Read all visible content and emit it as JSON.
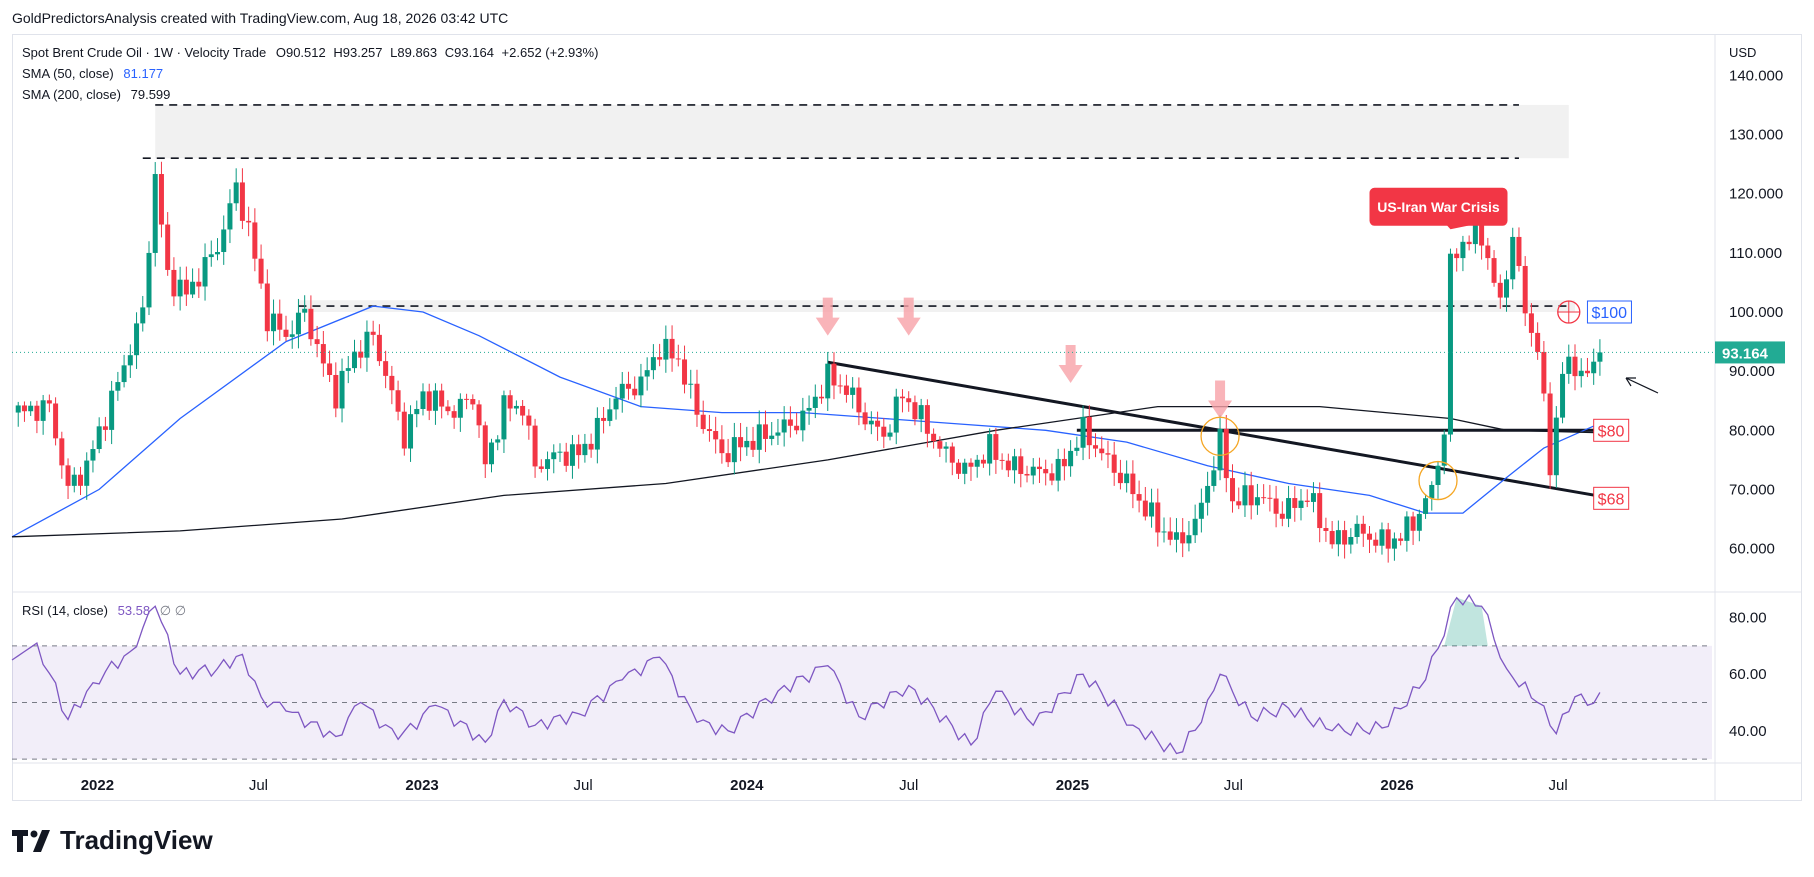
{
  "caption": "GoldPredictorsAnalysis created with TradingView.com, Aug 18, 2026 03:42 UTC",
  "legend": {
    "symbol": "Spot Brent Crude Oil · 1W · Velocity Trade",
    "ohlc": {
      "o_label": "O",
      "o": "90.512",
      "h_label": "H",
      "h": "93.257",
      "l_label": "L",
      "l": "89.863",
      "c_label": "C",
      "c": "93.164",
      "change": "+2.652 (+2.93%)"
    },
    "sma50_label": "SMA (50, close)",
    "sma50_value": "81.177",
    "sma200_label": "SMA (200, close)",
    "sma200_value": "79.599",
    "rsi_label": "RSI (14, close)",
    "rsi_value": "53.58",
    "rsi_extra": "∅  ∅"
  },
  "currency": "USD",
  "brand": "TradingView",
  "colors": {
    "up": "#089981",
    "down": "#f23645",
    "sma50": "#2962ff",
    "sma200": "#131722",
    "rsi": "#7e57c2",
    "price_tag": "#22ab94",
    "crisis": "#f23645",
    "arrow": "#f7a1a8"
  },
  "chart_data": [
    {
      "type": "candlestick",
      "title": "Spot Brent Crude Oil",
      "interval": "1W",
      "x_tick_labels": [
        "2022",
        "Jul",
        "2023",
        "Jul",
        "2024",
        "Jul",
        "2025",
        "Jul",
        "2026",
        "Jul"
      ],
      "x_ticks": [
        "2022-01-01",
        "2022-07-01",
        "2023-01-01",
        "2023-07-01",
        "2024-01-01",
        "2024-07-01",
        "2025-01-01",
        "2025-07-01",
        "2026-01-01",
        "2026-07-01"
      ],
      "xlim": [
        "2021-09-27",
        "2026-12-21"
      ],
      "ylim": [
        53,
        147
      ],
      "y_ticks": [
        60,
        70,
        80,
        90,
        100,
        110,
        120,
        130,
        140
      ],
      "y_tick_labels": [
        "60.000",
        "70.000",
        "80.000",
        "90.000",
        "100.000",
        "110.000",
        "120.000",
        "130.000",
        "140.000"
      ],
      "current_price": 93.164,
      "current_price_label": "93.164",
      "close_path": [
        [
          "2021-10-04",
          83
        ],
        [
          "2021-11-08",
          84
        ],
        [
          "2021-11-29",
          70
        ],
        [
          "2021-12-20",
          74
        ],
        [
          "2022-01-24",
          88
        ],
        [
          "2022-02-21",
          100
        ],
        [
          "2022-03-07",
          123
        ],
        [
          "2022-03-21",
          106
        ],
        [
          "2022-04-11",
          103
        ],
        [
          "2022-05-16",
          111
        ],
        [
          "2022-06-06",
          121
        ],
        [
          "2022-06-20",
          114
        ],
        [
          "2022-07-11",
          99
        ],
        [
          "2022-08-01",
          96
        ],
        [
          "2022-08-22",
          100
        ],
        [
          "2022-09-12",
          91
        ],
        [
          "2022-09-26",
          86
        ],
        [
          "2022-10-17",
          93
        ],
        [
          "2022-11-07",
          96
        ],
        [
          "2022-11-28",
          86
        ],
        [
          "2022-12-12",
          79
        ],
        [
          "2023-01-02",
          86
        ],
        [
          "2023-02-06",
          83
        ],
        [
          "2023-02-27",
          86
        ],
        [
          "2023-03-13",
          74
        ],
        [
          "2023-04-03",
          84
        ],
        [
          "2023-04-24",
          84
        ],
        [
          "2023-05-08",
          74
        ],
        [
          "2023-06-05",
          76
        ],
        [
          "2023-06-26",
          76
        ],
        [
          "2023-07-17",
          80
        ],
        [
          "2023-08-07",
          86
        ],
        [
          "2023-09-04",
          88
        ],
        [
          "2023-09-25",
          94
        ],
        [
          "2023-10-16",
          92
        ],
        [
          "2023-11-06",
          83
        ],
        [
          "2023-12-04",
          76
        ],
        [
          "2024-01-01",
          78
        ],
        [
          "2024-02-05",
          80
        ],
        [
          "2024-03-04",
          82
        ],
        [
          "2024-04-01",
          89
        ],
        [
          "2024-04-22",
          87
        ],
        [
          "2024-05-13",
          82
        ],
        [
          "2024-06-03",
          79
        ],
        [
          "2024-06-24",
          86
        ],
        [
          "2024-07-15",
          82
        ],
        [
          "2024-08-05",
          77
        ],
        [
          "2024-09-02",
          73
        ],
        [
          "2024-09-30",
          77
        ],
        [
          "2024-10-21",
          74
        ],
        [
          "2024-11-18",
          73
        ],
        [
          "2024-12-16",
          73
        ],
        [
          "2025-01-13",
          80
        ],
        [
          "2025-02-03",
          76
        ],
        [
          "2025-03-03",
          71
        ],
        [
          "2025-04-07",
          64
        ],
        [
          "2025-04-28",
          61
        ],
        [
          "2025-05-19",
          64
        ],
        [
          "2025-06-16",
          78
        ],
        [
          "2025-06-30",
          68
        ],
        [
          "2025-07-28",
          69
        ],
        [
          "2025-08-25",
          66
        ],
        [
          "2025-09-22",
          69
        ],
        [
          "2025-10-20",
          61
        ],
        [
          "2025-11-17",
          63
        ],
        [
          "2025-12-15",
          61
        ],
        [
          "2026-01-05",
          62
        ],
        [
          "2026-01-26",
          66
        ],
        [
          "2026-02-09",
          70
        ],
        [
          "2026-02-23",
          80
        ],
        [
          "2026-03-02",
          108
        ],
        [
          "2026-03-16",
          112
        ],
        [
          "2026-04-06",
          113
        ],
        [
          "2026-04-27",
          101
        ],
        [
          "2026-05-11",
          113
        ],
        [
          "2026-05-25",
          100
        ],
        [
          "2026-06-08",
          94
        ],
        [
          "2026-06-22",
          74
        ],
        [
          "2026-07-06",
          90
        ],
        [
          "2026-07-20",
          91
        ],
        [
          "2026-08-03",
          89
        ],
        [
          "2026-08-17",
          93.164
        ]
      ],
      "series": [
        {
          "name": "SMA (50, close)",
          "last": 81.177,
          "points": [
            [
              "2021-09-27",
              62
            ],
            [
              "2022-01-03",
              70
            ],
            [
              "2022-04-04",
              82
            ],
            [
              "2022-08-01",
              95
            ],
            [
              "2022-11-07",
              101
            ],
            [
              "2023-01-02",
              100
            ],
            [
              "2023-03-06",
              96
            ],
            [
              "2023-06-05",
              89
            ],
            [
              "2023-09-04",
              84
            ],
            [
              "2023-12-04",
              83
            ],
            [
              "2024-03-04",
              83
            ],
            [
              "2024-06-03",
              82
            ],
            [
              "2024-09-02",
              81
            ],
            [
              "2024-12-02",
              80
            ],
            [
              "2025-03-03",
              78
            ],
            [
              "2025-06-02",
              74
            ],
            [
              "2025-09-01",
              71
            ],
            [
              "2025-12-01",
              69
            ],
            [
              "2026-02-02",
              66
            ],
            [
              "2026-03-16",
              66
            ],
            [
              "2026-05-04",
              72
            ],
            [
              "2026-06-15",
              77
            ],
            [
              "2026-08-17",
              81.177
            ]
          ]
        },
        {
          "name": "SMA (200, close)",
          "last": 79.599,
          "points": [
            [
              "2021-09-27",
              62
            ],
            [
              "2022-04-04",
              63
            ],
            [
              "2022-10-03",
              65
            ],
            [
              "2023-04-03",
              69
            ],
            [
              "2023-10-02",
              71
            ],
            [
              "2024-04-01",
              75
            ],
            [
              "2024-10-07",
              80
            ],
            [
              "2025-04-07",
              84
            ],
            [
              "2025-10-06",
              84
            ],
            [
              "2026-03-02",
              82
            ],
            [
              "2026-05-04",
              80
            ],
            [
              "2026-08-17",
              79.599
            ]
          ]
        }
      ],
      "zones": [
        {
          "name": "resistance-zone-top",
          "from": "2022-03-07",
          "to": "2026-07-13",
          "y": [
            126,
            135
          ]
        },
        {
          "name": "resistance-zone-100",
          "from": "2022-08-15",
          "to": "2026-07-20",
          "y": [
            100,
            102
          ]
        }
      ],
      "lines": [
        {
          "name": "dashed-135",
          "from": "2022-03-07",
          "to": "2026-05-18",
          "y": 135,
          "style": "dashed"
        },
        {
          "name": "dashed-126",
          "from": "2022-02-21",
          "to": "2026-05-18",
          "y": 126,
          "style": "dashed"
        },
        {
          "name": "dashed-101",
          "from": "2022-08-15",
          "to": "2026-07-13",
          "y": 101,
          "style": "dashed"
        },
        {
          "name": "support-80",
          "from": "2025-01-06",
          "to": "2026-08-31",
          "y": 80,
          "style": "solid"
        },
        {
          "name": "trendline-descending",
          "from": [
            "2024-04-01",
            91.5
          ],
          "to": [
            "2026-08-31",
            68.5
          ],
          "style": "solid"
        }
      ],
      "price_labels": [
        {
          "text": "$100",
          "date": "2026-08-03",
          "y": 100,
          "color": "#2962ff"
        },
        {
          "text": "$80",
          "date": "2026-08-10",
          "y": 80,
          "color": "#f23645"
        },
        {
          "text": "$68",
          "date": "2026-08-10",
          "y": 68.5,
          "color": "#f23645"
        }
      ],
      "annotations": [
        {
          "text": "US-Iran War Crisis",
          "date": "2025-12-01",
          "y": 121,
          "pointer_to": [
            "2026-03-02",
            114
          ]
        }
      ],
      "down_arrows": [
        [
          "2024-04-01",
          96
        ],
        [
          "2024-07-01",
          96
        ],
        [
          "2024-12-30",
          88
        ],
        [
          "2025-06-16",
          82
        ]
      ],
      "circles": [
        [
          "2025-06-16",
          79
        ],
        [
          "2026-02-16",
          71.5
        ],
        [
          "2026-07-13",
          100
        ]
      ]
    },
    {
      "type": "line",
      "title": "RSI (14, close)",
      "ylim": [
        29,
        89
      ],
      "y_ticks": [
        40,
        60,
        80
      ],
      "y_tick_labels": [
        "40.00",
        "60.00",
        "80.00"
      ],
      "band": [
        30,
        70
      ],
      "midline": 50,
      "last": 53.58,
      "series": [
        {
          "name": "RSI (14, close)",
          "points": [
            [
              "2021-09-27",
              65
            ],
            [
              "2021-10-25",
              71
            ],
            [
              "2021-11-29",
              44
            ],
            [
              "2021-12-27",
              57
            ],
            [
              "2022-02-07",
              68
            ],
            [
              "2022-03-07",
              84
            ],
            [
              "2022-04-04",
              60
            ],
            [
              "2022-05-16",
              62
            ],
            [
              "2022-06-13",
              67
            ],
            [
              "2022-07-04",
              52
            ],
            [
              "2022-08-01",
              47
            ],
            [
              "2022-09-26",
              38
            ],
            [
              "2022-10-24",
              50
            ],
            [
              "2022-12-05",
              37
            ],
            [
              "2023-01-16",
              49
            ],
            [
              "2023-03-13",
              36
            ],
            [
              "2023-04-03",
              51
            ],
            [
              "2023-05-08",
              42
            ],
            [
              "2023-06-26",
              46
            ],
            [
              "2023-08-14",
              58
            ],
            [
              "2023-09-25",
              66
            ],
            [
              "2023-11-06",
              43
            ],
            [
              "2023-12-11",
              40
            ],
            [
              "2024-02-05",
              54
            ],
            [
              "2024-04-01",
              63
            ],
            [
              "2024-05-06",
              45
            ],
            [
              "2024-07-01",
              56
            ],
            [
              "2024-09-09",
              35
            ],
            [
              "2024-10-07",
              54
            ],
            [
              "2024-11-18",
              42
            ],
            [
              "2025-01-13",
              60
            ],
            [
              "2025-03-10",
              42
            ],
            [
              "2025-04-28",
              32
            ],
            [
              "2025-05-26",
              43
            ],
            [
              "2025-06-16",
              60
            ],
            [
              "2025-07-21",
              45
            ],
            [
              "2025-09-01",
              48
            ],
            [
              "2025-10-20",
              40
            ],
            [
              "2025-12-15",
              41
            ],
            [
              "2026-02-02",
              58
            ],
            [
              "2026-03-09",
              87
            ],
            [
              "2026-04-06",
              84
            ],
            [
              "2026-05-04",
              62
            ],
            [
              "2026-06-08",
              50
            ],
            [
              "2026-06-29",
              39
            ],
            [
              "2026-07-20",
              52
            ],
            [
              "2026-08-03",
              49
            ],
            [
              "2026-08-17",
              53.58
            ]
          ]
        }
      ],
      "overbought_fill": {
        "from": "2026-02-23",
        "to": "2026-04-13"
      }
    }
  ]
}
